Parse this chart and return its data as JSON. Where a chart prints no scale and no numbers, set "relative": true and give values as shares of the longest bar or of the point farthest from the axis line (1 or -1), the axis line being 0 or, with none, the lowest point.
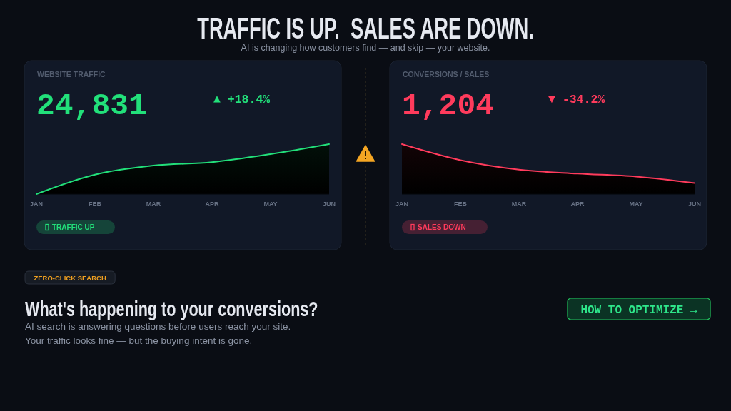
{
  "chart_data": [
    {
      "type": "other",
      "title": "TRAFFIC IS UP.  SALES ARE DOWN.",
      "subtitle": "AI is changing how customers find — and skip — your website."
    },
    {
      "type": "area",
      "title": "WEBSITE TRAFFIC",
      "categories": [
        "JAN",
        "FEB",
        "MAR",
        "APR",
        "MAY",
        "JUN"
      ],
      "values": [
        0,
        0.39,
        0.57,
        0.64,
        0.8,
        1
      ],
      "color": "#22e07a",
      "relative": true,
      "annotations": [
        "24,831",
        "▲ +18.4%",
        "TRAFFIC UP"
      ]
    },
    {
      "type": "area",
      "title": "CONVERSIONS / SALES",
      "categories": [
        "JAN",
        "FEB",
        "MAR",
        "APR",
        "MAY",
        "JUN"
      ],
      "values": [
        1,
        0.68,
        0.49,
        0.41,
        0.35,
        0.22
      ],
      "color": "#ff3b5c",
      "relative": true,
      "annotations": [
        "1,204",
        "▼ -34.2%",
        "SALES DOWN"
      ]
    },
    {
      "type": "other",
      "title": "What's happening to your conversions?",
      "annotations": [
        "ZERO-CLICK SEARCH",
        "AI search is answering questions before users reach your site.",
        "Your traffic looks fine — but the buying intent is gone.",
        "HOW TO OPTIMIZE →"
      ]
    }
  ]
}
